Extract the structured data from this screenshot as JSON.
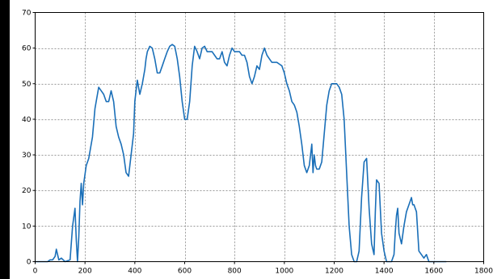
{
  "chart_data": {
    "type": "line",
    "title": "",
    "xlabel": "",
    "ylabel": "",
    "xlim": [
      0,
      1800
    ],
    "ylim": [
      0,
      70
    ],
    "x_ticks": [
      0,
      200,
      400,
      600,
      800,
      1000,
      1200,
      1400,
      1600,
      1800
    ],
    "y_ticks": [
      0,
      10,
      20,
      30,
      40,
      50,
      60,
      70
    ],
    "grid": true,
    "legend": "none",
    "colors": {
      "line": "#1a6fb8",
      "grid": "#9a9a9a",
      "plot_bg": "#ffffff",
      "outer_bg": "#ffffff",
      "frame": "#000000",
      "left_strip": "#000000"
    },
    "series": [
      {
        "x": [
          0,
          50,
          60,
          70,
          80,
          85,
          95,
          105,
          120,
          140,
          150,
          160,
          165,
          170,
          175,
          180,
          185,
          190,
          195,
          205,
          215,
          230,
          240,
          255,
          265,
          275,
          285,
          295,
          305,
          315,
          325,
          335,
          345,
          355,
          365,
          375,
          385,
          395,
          400,
          410,
          420,
          430,
          440,
          445,
          450,
          460,
          470,
          480,
          490,
          500,
          510,
          520,
          530,
          540,
          550,
          560,
          570,
          580,
          590,
          600,
          610,
          620,
          630,
          640,
          650,
          660,
          670,
          680,
          690,
          700,
          710,
          720,
          730,
          740,
          750,
          760,
          770,
          780,
          790,
          800,
          810,
          820,
          830,
          840,
          850,
          860,
          870,
          880,
          890,
          900,
          910,
          920,
          930,
          940,
          950,
          960,
          970,
          980,
          990,
          1000,
          1010,
          1020,
          1030,
          1040,
          1050,
          1060,
          1070,
          1080,
          1090,
          1100,
          1110,
          1115,
          1120,
          1125,
          1130,
          1140,
          1150,
          1160,
          1170,
          1180,
          1190,
          1200,
          1210,
          1220,
          1230,
          1240,
          1250,
          1260,
          1270,
          1280,
          1290,
          1300,
          1310,
          1320,
          1330,
          1340,
          1350,
          1360,
          1365,
          1370,
          1380,
          1390,
          1400,
          1410,
          1420,
          1430,
          1440,
          1445,
          1450,
          1455,
          1460,
          1470,
          1480,
          1490,
          1500,
          1510,
          1515,
          1520,
          1530,
          1540,
          1550,
          1560,
          1570,
          1580,
          1600,
          1650
        ],
        "values": [
          0,
          0,
          0.5,
          0.5,
          1.5,
          3.5,
          0.5,
          1,
          0,
          0.5,
          10,
          15,
          6,
          0,
          7,
          17,
          22,
          16,
          22,
          27,
          29,
          35,
          43,
          49,
          48,
          47,
          45,
          45,
          48,
          45,
          38,
          35,
          33,
          30,
          25,
          24,
          30,
          36,
          45,
          51,
          47,
          50,
          54,
          57,
          59,
          60.5,
          60,
          57,
          53,
          53,
          55,
          57,
          59,
          60.5,
          61,
          60.5,
          57,
          52,
          45,
          40,
          40,
          45,
          55,
          60.5,
          59,
          57,
          60,
          60.5,
          59,
          59,
          59,
          58,
          57,
          57,
          59,
          56,
          55,
          58,
          60,
          59,
          59,
          59,
          58,
          58,
          56,
          52,
          50,
          52,
          55,
          54,
          58,
          60,
          58,
          57,
          56,
          56,
          56,
          55.5,
          55,
          53,
          50,
          48,
          45,
          44,
          42,
          38,
          33,
          27,
          25,
          27,
          33,
          25,
          30,
          27,
          26,
          26,
          28,
          36,
          44,
          48,
          50,
          50,
          50,
          49,
          47,
          40,
          25,
          10,
          2,
          0,
          0,
          3,
          18,
          28,
          29,
          15,
          5,
          2,
          14,
          23,
          22,
          8,
          3,
          0,
          0,
          0,
          2,
          8,
          13,
          15,
          8,
          5,
          10,
          14,
          16,
          18,
          16,
          16,
          14,
          3,
          2,
          1,
          2,
          0,
          0,
          0
        ]
      }
    ]
  }
}
